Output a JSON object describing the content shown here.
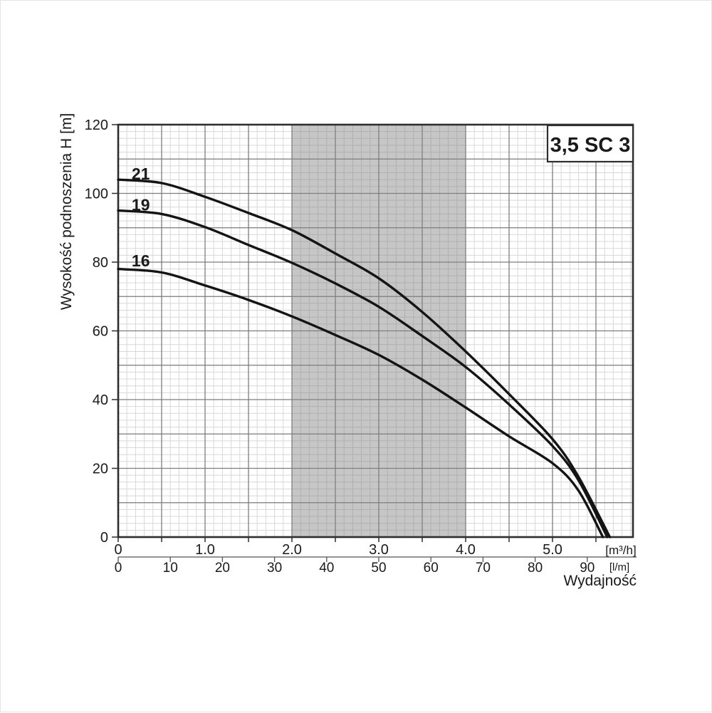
{
  "chart_data": {
    "type": "line",
    "title": "3,5 SC 3",
    "ylabel": "Wysokość podnoszenia H [m]",
    "xlabel": "Wydajność",
    "ylim": [
      0,
      120
    ],
    "y_ticks": [
      0,
      20,
      40,
      60,
      80,
      100,
      120
    ],
    "x_axis_primary": {
      "unit": "[m³/h]",
      "ticks": [
        0,
        1,
        2,
        3,
        4,
        5
      ],
      "tick_labels": [
        "0",
        "1.0",
        "2.0",
        "3.0",
        "4.0",
        "5.0"
      ],
      "max": 5.92
    },
    "x_axis_secondary": {
      "unit": "[l/m]",
      "ticks": [
        0,
        10,
        20,
        30,
        40,
        50,
        60,
        70,
        80,
        90
      ]
    },
    "grid": {
      "visible": true,
      "x_major_step": 0.5,
      "x_minor_step": 0.1,
      "y_major_step": 10,
      "y_minor_step": 2
    },
    "shaded_band": {
      "x_from": 2.0,
      "x_to": 4.0
    },
    "series": [
      {
        "name": "21",
        "label_pos": [
          0.26,
          104
        ],
        "points": [
          [
            0,
            104
          ],
          [
            0.5,
            103
          ],
          [
            1,
            99
          ],
          [
            1.5,
            94.3
          ],
          [
            2,
            89.3
          ],
          [
            2.5,
            82.5
          ],
          [
            3,
            75.3
          ],
          [
            3.5,
            65.5
          ],
          [
            4,
            54
          ],
          [
            4.5,
            41.6
          ],
          [
            5,
            28.5
          ],
          [
            5.3,
            17.5
          ],
          [
            5.66,
            0
          ]
        ]
      },
      {
        "name": "19",
        "label_pos": [
          0.26,
          95
        ],
        "points": [
          [
            0,
            95
          ],
          [
            0.5,
            94
          ],
          [
            1,
            90.2
          ],
          [
            1.5,
            85
          ],
          [
            2,
            79.8
          ],
          [
            2.5,
            73.8
          ],
          [
            3,
            67
          ],
          [
            3.5,
            58.5
          ],
          [
            4,
            49.5
          ],
          [
            4.5,
            38.6
          ],
          [
            5,
            26.5
          ],
          [
            5.3,
            16.5
          ],
          [
            5.63,
            0
          ]
        ]
      },
      {
        "name": "16",
        "label_pos": [
          0.26,
          78.8
        ],
        "points": [
          [
            0,
            78
          ],
          [
            0.5,
            77
          ],
          [
            1,
            73.2
          ],
          [
            1.5,
            69
          ],
          [
            2,
            64.2
          ],
          [
            2.5,
            58.8
          ],
          [
            3,
            53
          ],
          [
            3.5,
            45.8
          ],
          [
            4,
            37.7
          ],
          [
            4.5,
            29.3
          ],
          [
            5,
            21.5
          ],
          [
            5.3,
            13.5
          ],
          [
            5.58,
            0
          ]
        ]
      }
    ],
    "series_label_color": "#b2473f",
    "curve_color": "#141414"
  },
  "colors": {
    "band": "rgba(128,128,128,0.45)",
    "grid_major": "#7e7e7e",
    "grid_minor": "#d8d8d8",
    "border": "#2e2e2e",
    "axis_secondary_line": "#555555",
    "text": "#1a1a1a"
  }
}
